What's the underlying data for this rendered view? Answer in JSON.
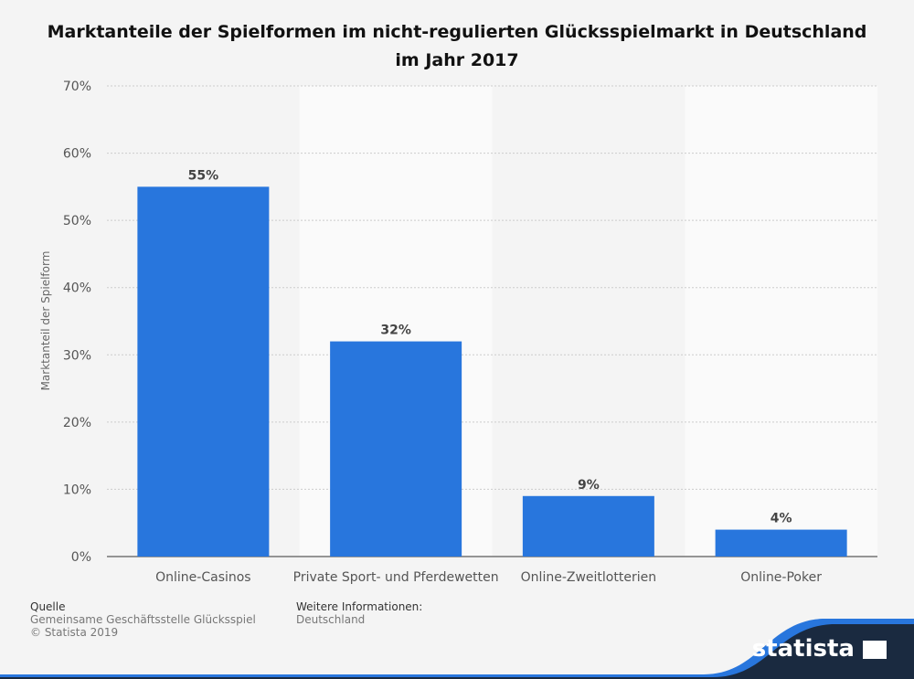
{
  "chart_data": {
    "type": "bar",
    "title_lines": [
      "Marktanteile der Spielformen im nicht-regulierten Glücksspielmarkt in Deutschland",
      "im Jahr 2017"
    ],
    "categories": [
      "Online-Casinos",
      "Private Sport- und Pferdewetten",
      "Online-Zweitlotterien",
      "Online-Poker"
    ],
    "values": [
      55,
      32,
      9,
      4
    ],
    "data_labels": [
      "55%",
      "32%",
      "9%",
      "4%"
    ],
    "xlabel": "",
    "ylabel": "Marktanteil der Spielform",
    "ylim": [
      0,
      70
    ],
    "yticks": [
      "0%",
      "10%",
      "20%",
      "30%",
      "40%",
      "50%",
      "60%",
      "70%"
    ],
    "grid": true,
    "bar_color": "#2876dd"
  },
  "footer": {
    "source_label": "Quelle",
    "source": "Gemeinsame Geschäftsstelle Glücksspiel",
    "copyright": "© Statista 2019",
    "info_label": "Weitere Informationen:",
    "info": "Deutschland"
  },
  "logo": "statista"
}
